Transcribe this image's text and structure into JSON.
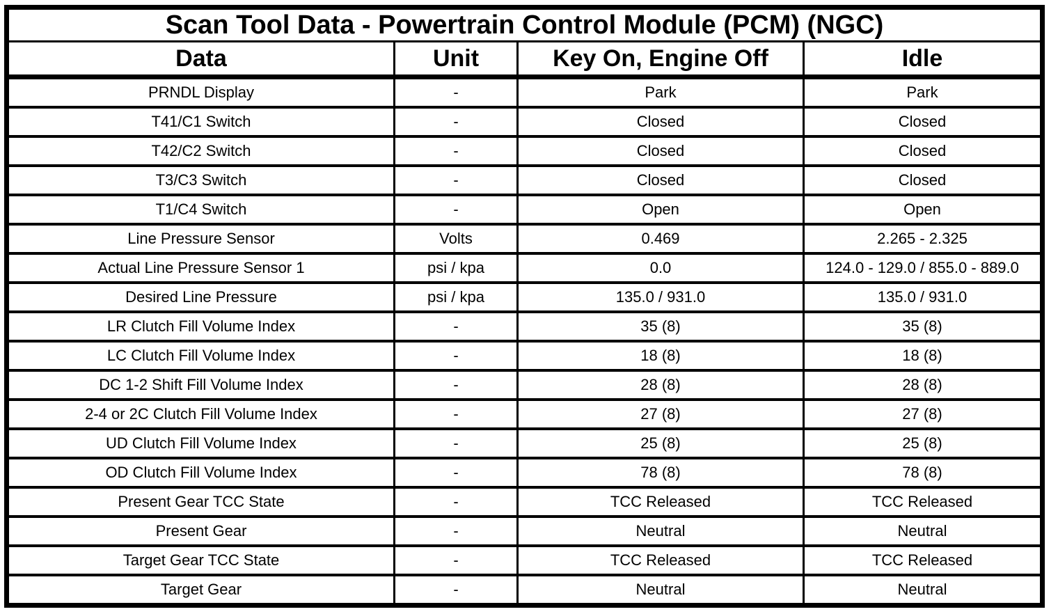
{
  "table": {
    "title": "Scan Tool Data - Powertrain Control Module (PCM) (NGC)",
    "columns": {
      "data": "Data",
      "unit": "Unit",
      "key_on_engine_off": "Key On, Engine Off",
      "idle": "Idle"
    },
    "rows": [
      [
        "PRNDL Display",
        "-",
        "Park",
        "Park"
      ],
      [
        "T41/C1 Switch",
        "-",
        "Closed",
        "Closed"
      ],
      [
        "T42/C2 Switch",
        "-",
        "Closed",
        "Closed"
      ],
      [
        "T3/C3 Switch",
        "-",
        "Closed",
        "Closed"
      ],
      [
        "T1/C4 Switch",
        "-",
        "Open",
        "Open"
      ],
      [
        "Line Pressure Sensor",
        "Volts",
        "0.469",
        "2.265 - 2.325"
      ],
      [
        "Actual Line Pressure Sensor 1",
        "psi / kpa",
        "0.0",
        "124.0 - 129.0 / 855.0 - 889.0"
      ],
      [
        "Desired Line Pressure",
        "psi / kpa",
        "135.0 / 931.0",
        "135.0 / 931.0"
      ],
      [
        "LR Clutch Fill Volume Index",
        "-",
        "35 (8)",
        "35 (8)"
      ],
      [
        "LC Clutch Fill Volume Index",
        "-",
        "18 (8)",
        "18 (8)"
      ],
      [
        "DC 1-2 Shift Fill Volume Index",
        "-",
        "28 (8)",
        "28 (8)"
      ],
      [
        "2-4 or 2C Clutch Fill Volume Index",
        "-",
        "27 (8)",
        "27 (8)"
      ],
      [
        "UD Clutch Fill Volume Index",
        "-",
        "25 (8)",
        "25 (8)"
      ],
      [
        "OD Clutch Fill Volume Index",
        "-",
        "78 (8)",
        "78 (8)"
      ],
      [
        "Present Gear TCC State",
        "-",
        "TCC Released",
        "TCC Released"
      ],
      [
        "Present Gear",
        "-",
        "Neutral",
        "Neutral"
      ],
      [
        "Target Gear TCC State",
        "-",
        "TCC Released",
        "TCC Released"
      ],
      [
        "Target Gear",
        "-",
        "Neutral",
        "Neutral"
      ]
    ],
    "colors": {
      "border": "#000000",
      "background": "#ffffff",
      "text": "#000000"
    }
  }
}
